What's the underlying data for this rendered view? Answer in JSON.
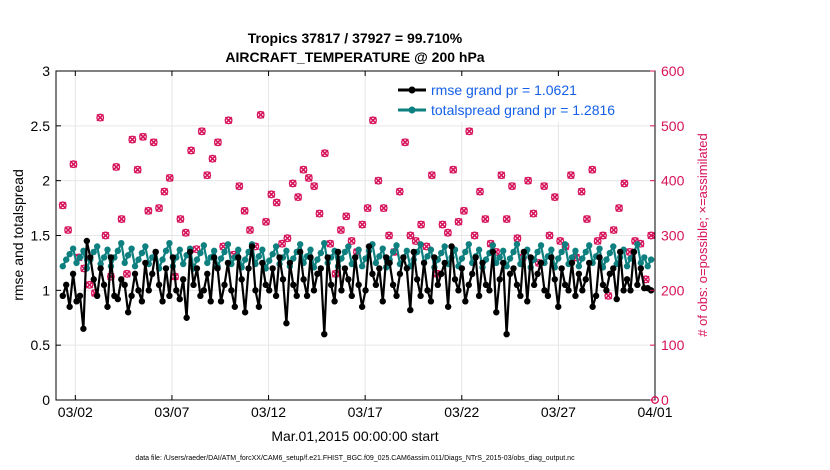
{
  "chart_data": {
    "type": "line",
    "title_line1": "Tropics 37817 / 37927 = 99.710%",
    "title_line2": "AIRCRAFT_TEMPERATURE @ 200 hPa",
    "xlabel": "Mar.01,2015 00:00:00 start",
    "ylabel_left": "rmse and totalspread",
    "ylabel_right": "# of obs: o=possible; ×=assimilated",
    "x_tick_labels": [
      "03/02",
      "03/07",
      "03/12",
      "03/17",
      "03/22",
      "03/27",
      "04/01"
    ],
    "x_tick_days": [
      1,
      6,
      11,
      16,
      21,
      26,
      31
    ],
    "xlim_days": [
      0,
      31
    ],
    "ylim_left": [
      0,
      3
    ],
    "y_ticks_left": [
      0,
      0.5,
      1,
      1.5,
      2,
      2.5,
      3
    ],
    "ylim_right": [
      0,
      600
    ],
    "y_ticks_right": [
      0,
      100,
      200,
      300,
      400,
      500,
      600
    ],
    "grid": true,
    "legend_position": "top-right",
    "footer": "data file: /Users/raeder/DAI/ATM_forcXX/CAM6_setup/f.e21.FHIST_BGC.f09_025.CAM6assim.011/Diags_NTrS_2015-03/obs_diag_output.nc",
    "colors": {
      "rmse": "#000000",
      "spread": "#0f8080",
      "obs": "#d6125a",
      "legend_text": "#1560e8"
    },
    "series": [
      {
        "name": "rmse grand pr = 1.0621",
        "key": "rmse",
        "values": [
          0.95,
          1.05,
          0.85,
          1.15,
          0.9,
          0.95,
          0.65,
          1.45,
          1.3,
          1.1,
          0.95,
          1.2,
          1.05,
          0.85,
          1.3,
          0.95,
          0.92,
          1.1,
          1.05,
          0.8,
          0.95,
          1.15,
          1.0,
          0.9,
          1.25,
          1.0,
          1.15,
          1.35,
          1.05,
          0.9,
          1.2,
          0.95,
          1.3,
          1.0,
          0.92,
          1.1,
          0.75,
          1.35,
          1.05,
          1.2,
          0.95,
          1.0,
          1.15,
          0.9,
          1.3,
          1.2,
          0.9,
          1.05,
          1.25,
          1.0,
          0.85,
          1.3,
          1.1,
          0.8,
          1.2,
          1.4,
          1.0,
          0.85,
          1.25,
          1.05,
          1.0,
          1.2,
          0.95,
          1.3,
          1.1,
          0.7,
          1.25,
          1.05,
          0.95,
          1.35,
          1.1,
          0.95,
          1.3,
          1.0,
          1.15,
          1.2,
          0.6,
          1.3,
          1.05,
          0.9,
          1.35,
          1.0,
          1.2,
          1.1,
          0.95,
          1.3,
          1.05,
          0.85,
          1.0,
          1.4,
          1.15,
          1.05,
          1.2,
          0.9,
          1.3,
          1.25,
          1.05,
          0.95,
          1.15,
          1.3,
          1.2,
          0.82,
          1.35,
          1.1,
          0.95,
          1.25,
          1.0,
          0.9,
          1.3,
          1.05,
          1.15,
          1.25,
          0.85,
          1.4,
          1.1,
          1.0,
          1.2,
          0.9,
          1.05,
          1.15,
          1.3,
          0.95,
          1.25,
          1.05,
          1.0,
          1.35,
          0.8,
          1.1,
          1.25,
          0.6,
          1.15,
          1.2,
          1.05,
          0.95,
          1.35,
          0.9,
          1.3,
          1.05,
          1.15,
          1.25,
          1.0,
          0.95,
          1.3,
          1.1,
          0.85,
          1.2,
          1.05,
          1.0,
          1.25,
          0.95,
          1.15,
          1.0,
          1.1,
          1.25,
          0.85,
          0.95,
          1.3,
          1.05,
          1.0,
          1.15,
          1.2,
          0.92,
          1.35,
          1.0,
          1.1,
          1.0,
          1.35,
          1.05,
          1.2,
          1.02,
          1.02,
          1.0
        ]
      },
      {
        "name": "totalspread grand pr = 1.2816",
        "key": "spread",
        "values": [
          1.22,
          1.28,
          1.33,
          1.38,
          1.25,
          1.3,
          1.36,
          1.2,
          1.28,
          1.35,
          1.4,
          1.24,
          1.3,
          1.37,
          1.22,
          1.3,
          1.36,
          1.43,
          1.25,
          1.32,
          1.38,
          1.22,
          1.28,
          1.34,
          1.4,
          1.24,
          1.3,
          1.35,
          1.2,
          1.28,
          1.36,
          1.43,
          1.22,
          1.3,
          1.37,
          1.24,
          1.32,
          1.38,
          1.2,
          1.28,
          1.34,
          1.41,
          1.25,
          1.3,
          1.36,
          1.22,
          1.29,
          1.35,
          1.42,
          1.24,
          1.3,
          1.37,
          1.21,
          1.28,
          1.35,
          1.42,
          1.24,
          1.31,
          1.37,
          1.2,
          1.27,
          1.33,
          1.4,
          1.24,
          1.3,
          1.36,
          1.22,
          1.29,
          1.35,
          1.42,
          1.25,
          1.31,
          1.37,
          1.21,
          1.28,
          1.34,
          1.43,
          1.25,
          1.3,
          1.36,
          1.22,
          1.29,
          1.35,
          1.4,
          1.24,
          1.3,
          1.37,
          1.22,
          1.29,
          1.36,
          1.42,
          1.25,
          1.31,
          1.38,
          1.21,
          1.28,
          1.35,
          1.41,
          1.24,
          1.3,
          1.36,
          1.22,
          1.28,
          1.35,
          1.42,
          1.25,
          1.31,
          1.37,
          1.21,
          1.28,
          1.34,
          1.4,
          1.24,
          1.3,
          1.37,
          1.22,
          1.29,
          1.35,
          1.42,
          1.25,
          1.31,
          1.37,
          1.21,
          1.28,
          1.34,
          1.41,
          1.25,
          1.3,
          1.36,
          1.22,
          1.29,
          1.35,
          1.42,
          1.24,
          1.3,
          1.37,
          1.21,
          1.28,
          1.35,
          1.41,
          1.25,
          1.31,
          1.37,
          1.21,
          1.29,
          1.35,
          1.42,
          1.24,
          1.3,
          1.36,
          1.22,
          1.29,
          1.35,
          1.41,
          1.25,
          1.31,
          1.38,
          1.21,
          1.28,
          1.34,
          1.4,
          1.24,
          1.3,
          1.37,
          1.22,
          1.29,
          1.35,
          1.42,
          1.25,
          1.3,
          1.22,
          1.28
        ]
      },
      {
        "name": "# of obs possible",
        "key": "obs",
        "values": [
          355,
          310,
          430,
          260,
          240,
          210,
          195,
          515,
          300,
          225,
          425,
          330,
          230,
          475,
          420,
          480,
          345,
          470,
          350,
          380,
          405,
          225,
          330,
          305,
          455,
          275,
          490,
          410,
          440,
          470,
          280,
          510,
          265,
          390,
          345,
          310,
          280,
          520,
          325,
          375,
          360,
          285,
          295,
          395,
          370,
          420,
          405,
          390,
          340,
          450,
          285,
          230,
          310,
          335,
          290,
          270,
          320,
          350,
          510,
          400,
          350,
          300,
          270,
          380,
          470,
          300,
          290,
          320,
          280,
          410,
          230,
          320,
          305,
          420,
          325,
          345,
          490,
          300,
          380,
          330,
          285,
          270,
          410,
          330,
          390,
          295,
          260,
          400,
          340,
          250,
          390,
          300,
          370,
          290,
          280,
          410,
          260,
          380,
          330,
          420,
          290,
          300,
          190,
          310,
          350,
          395,
          270,
          290,
          285,
          220,
          300
        ]
      }
    ]
  }
}
